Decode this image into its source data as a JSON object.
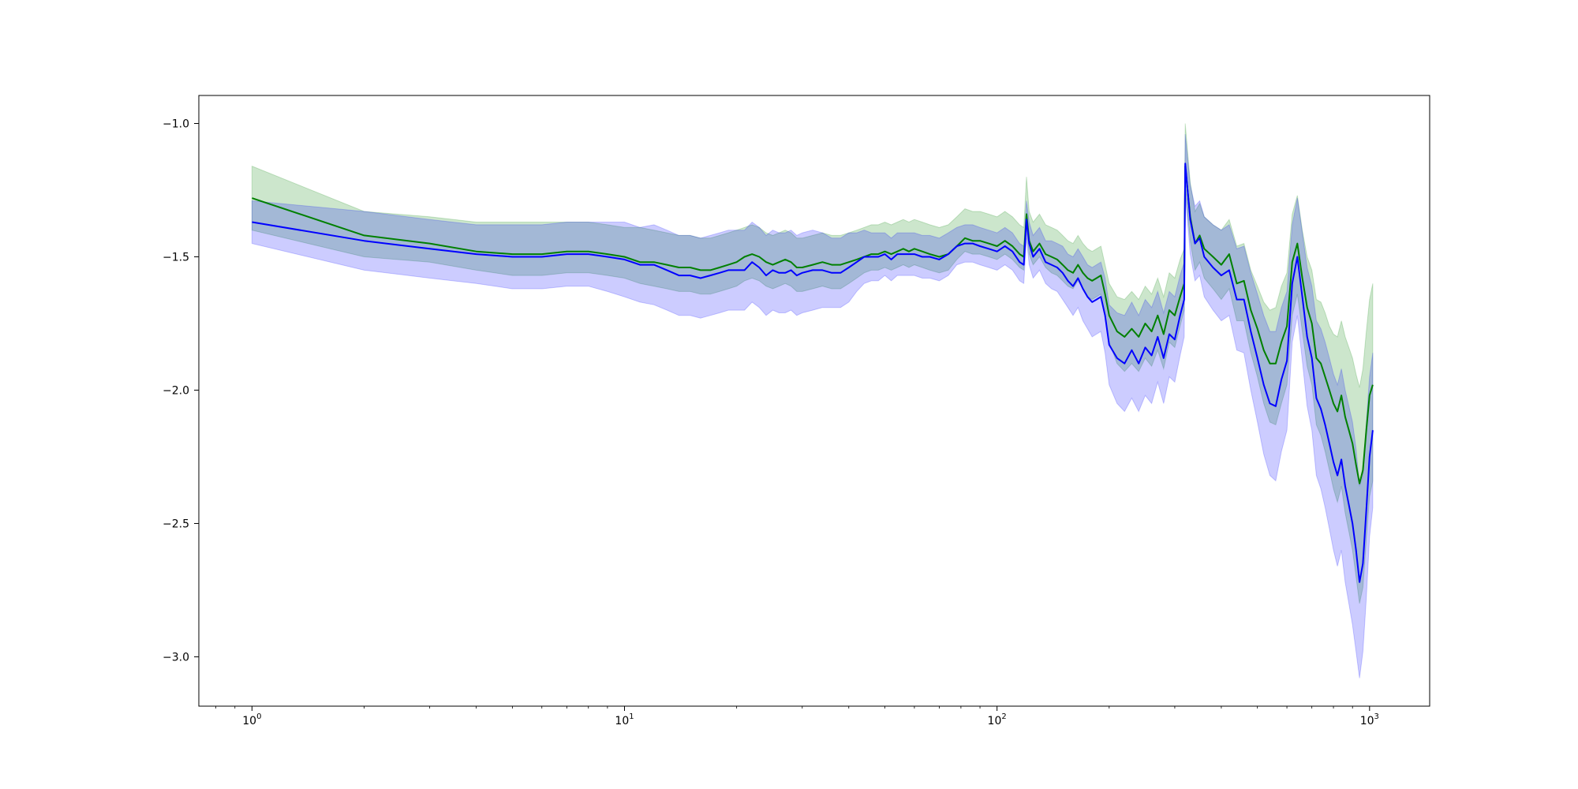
{
  "chart_data": {
    "type": "line",
    "title": "",
    "xlabel": "",
    "ylabel": "",
    "xscale": "log",
    "xlim": [
      0.72,
      1450
    ],
    "ylim": [
      -3.185,
      -0.895
    ],
    "grid": false,
    "legend": "none",
    "x_ticks": [
      {
        "base": "10",
        "exp": "0",
        "value": 1
      },
      {
        "base": "10",
        "exp": "1",
        "value": 10
      },
      {
        "base": "10",
        "exp": "2",
        "value": 100
      },
      {
        "base": "10",
        "exp": "3",
        "value": 1000
      }
    ],
    "y_ticks": [
      {
        "label": "−1.0",
        "value": -1.0
      },
      {
        "label": "−1.5",
        "value": -1.5
      },
      {
        "label": "−2.0",
        "value": -2.0
      },
      {
        "label": "−2.5",
        "value": -2.5
      },
      {
        "label": "−3.0",
        "value": -3.0
      }
    ],
    "series": [
      {
        "color": "#008000",
        "band_color": "#008000",
        "band_opacity": 0.2,
        "x": [
          1,
          2,
          3,
          4,
          5,
          6,
          7,
          8,
          9,
          10,
          11,
          12,
          13,
          14,
          15,
          16,
          17,
          18,
          19,
          20,
          21,
          22,
          23,
          24,
          25,
          26,
          27,
          28,
          29,
          30,
          32,
          34,
          36,
          38,
          40,
          42,
          44,
          46,
          48,
          50,
          52,
          54,
          56,
          58,
          60,
          63,
          66,
          70,
          74,
          78,
          82,
          86,
          90,
          95,
          100,
          105,
          110,
          115,
          118,
          120,
          122,
          125,
          130,
          135,
          140,
          145,
          150,
          155,
          160,
          165,
          170,
          175,
          180,
          185,
          190,
          195,
          200,
          210,
          220,
          230,
          240,
          250,
          260,
          270,
          280,
          290,
          300,
          310,
          318,
          320,
          330,
          340,
          350,
          360,
          380,
          400,
          420,
          440,
          460,
          480,
          500,
          520,
          540,
          560,
          580,
          600,
          620,
          640,
          660,
          680,
          700,
          720,
          740,
          760,
          780,
          800,
          820,
          840,
          860,
          880,
          900,
          920,
          940,
          960,
          980,
          1000,
          1020
        ],
        "y": [
          -1.28,
          -1.42,
          -1.45,
          -1.48,
          -1.49,
          -1.49,
          -1.48,
          -1.48,
          -1.49,
          -1.5,
          -1.52,
          -1.52,
          -1.53,
          -1.54,
          -1.54,
          -1.55,
          -1.55,
          -1.54,
          -1.53,
          -1.52,
          -1.5,
          -1.49,
          -1.5,
          -1.52,
          -1.53,
          -1.52,
          -1.51,
          -1.52,
          -1.54,
          -1.54,
          -1.53,
          -1.52,
          -1.53,
          -1.53,
          -1.52,
          -1.51,
          -1.5,
          -1.49,
          -1.49,
          -1.48,
          -1.49,
          -1.48,
          -1.47,
          -1.48,
          -1.47,
          -1.48,
          -1.49,
          -1.5,
          -1.49,
          -1.46,
          -1.43,
          -1.44,
          -1.44,
          -1.45,
          -1.46,
          -1.44,
          -1.46,
          -1.49,
          -1.5,
          -1.34,
          -1.44,
          -1.48,
          -1.45,
          -1.49,
          -1.5,
          -1.51,
          -1.53,
          -1.55,
          -1.56,
          -1.53,
          -1.56,
          -1.58,
          -1.59,
          -1.58,
          -1.57,
          -1.64,
          -1.72,
          -1.78,
          -1.8,
          -1.77,
          -1.8,
          -1.75,
          -1.78,
          -1.72,
          -1.79,
          -1.7,
          -1.72,
          -1.65,
          -1.6,
          -1.16,
          -1.35,
          -1.45,
          -1.42,
          -1.47,
          -1.5,
          -1.53,
          -1.49,
          -1.6,
          -1.59,
          -1.7,
          -1.77,
          -1.85,
          -1.9,
          -1.9,
          -1.82,
          -1.76,
          -1.52,
          -1.45,
          -1.58,
          -1.69,
          -1.75,
          -1.88,
          -1.9,
          -1.95,
          -2.0,
          -2.05,
          -2.08,
          -2.02,
          -2.1,
          -2.15,
          -2.2,
          -2.28,
          -2.35,
          -2.3,
          -2.15,
          -2.02,
          -1.98
        ],
        "lower": [
          -1.4,
          -1.5,
          -1.52,
          -1.55,
          -1.57,
          -1.57,
          -1.56,
          -1.56,
          -1.57,
          -1.58,
          -1.6,
          -1.61,
          -1.62,
          -1.63,
          -1.63,
          -1.64,
          -1.64,
          -1.63,
          -1.62,
          -1.61,
          -1.59,
          -1.58,
          -1.59,
          -1.61,
          -1.62,
          -1.61,
          -1.6,
          -1.61,
          -1.63,
          -1.63,
          -1.62,
          -1.61,
          -1.62,
          -1.62,
          -1.6,
          -1.58,
          -1.56,
          -1.55,
          -1.55,
          -1.54,
          -1.55,
          -1.54,
          -1.53,
          -1.54,
          -1.53,
          -1.54,
          -1.55,
          -1.56,
          -1.55,
          -1.51,
          -1.48,
          -1.49,
          -1.49,
          -1.5,
          -1.51,
          -1.49,
          -1.51,
          -1.54,
          -1.55,
          -1.4,
          -1.49,
          -1.53,
          -1.5,
          -1.54,
          -1.56,
          -1.57,
          -1.59,
          -1.61,
          -1.62,
          -1.59,
          -1.62,
          -1.65,
          -1.66,
          -1.65,
          -1.64,
          -1.72,
          -1.82,
          -1.9,
          -1.93,
          -1.9,
          -1.93,
          -1.88,
          -1.91,
          -1.85,
          -1.92,
          -1.82,
          -1.84,
          -1.76,
          -1.7,
          -1.24,
          -1.44,
          -1.55,
          -1.52,
          -1.58,
          -1.62,
          -1.66,
          -1.62,
          -1.74,
          -1.74,
          -1.86,
          -1.95,
          -2.05,
          -2.12,
          -2.13,
          -2.05,
          -1.98,
          -1.72,
          -1.64,
          -1.78,
          -1.91,
          -1.98,
          -2.13,
          -2.17,
          -2.23,
          -2.3,
          -2.37,
          -2.42,
          -2.36,
          -2.46,
          -2.53,
          -2.6,
          -2.7,
          -2.8,
          -2.74,
          -2.56,
          -2.4,
          -2.34
        ],
        "upper": [
          -1.16,
          -1.33,
          -1.35,
          -1.37,
          -1.37,
          -1.37,
          -1.37,
          -1.37,
          -1.38,
          -1.39,
          -1.39,
          -1.4,
          -1.41,
          -1.42,
          -1.42,
          -1.43,
          -1.43,
          -1.42,
          -1.41,
          -1.4,
          -1.39,
          -1.38,
          -1.39,
          -1.41,
          -1.42,
          -1.41,
          -1.4,
          -1.41,
          -1.43,
          -1.43,
          -1.42,
          -1.41,
          -1.42,
          -1.42,
          -1.41,
          -1.4,
          -1.39,
          -1.38,
          -1.38,
          -1.37,
          -1.38,
          -1.37,
          -1.36,
          -1.37,
          -1.36,
          -1.37,
          -1.38,
          -1.39,
          -1.38,
          -1.35,
          -1.32,
          -1.33,
          -1.33,
          -1.34,
          -1.35,
          -1.33,
          -1.35,
          -1.38,
          -1.39,
          -1.2,
          -1.33,
          -1.37,
          -1.34,
          -1.38,
          -1.39,
          -1.4,
          -1.42,
          -1.44,
          -1.45,
          -1.42,
          -1.45,
          -1.47,
          -1.48,
          -1.47,
          -1.46,
          -1.53,
          -1.6,
          -1.65,
          -1.66,
          -1.63,
          -1.66,
          -1.61,
          -1.64,
          -1.58,
          -1.65,
          -1.56,
          -1.58,
          -1.51,
          -1.47,
          -1.0,
          -1.22,
          -1.33,
          -1.3,
          -1.35,
          -1.38,
          -1.4,
          -1.36,
          -1.46,
          -1.45,
          -1.55,
          -1.61,
          -1.67,
          -1.7,
          -1.69,
          -1.61,
          -1.56,
          -1.34,
          -1.27,
          -1.4,
          -1.5,
          -1.55,
          -1.66,
          -1.67,
          -1.71,
          -1.76,
          -1.79,
          -1.8,
          -1.74,
          -1.8,
          -1.84,
          -1.88,
          -1.94,
          -1.99,
          -1.92,
          -1.78,
          -1.66,
          -1.6
        ]
      },
      {
        "color": "#0000ff",
        "band_color": "#0000ff",
        "band_opacity": 0.2,
        "x": [
          1,
          2,
          3,
          4,
          5,
          6,
          7,
          8,
          9,
          10,
          11,
          12,
          13,
          14,
          15,
          16,
          17,
          18,
          19,
          20,
          21,
          22,
          23,
          24,
          25,
          26,
          27,
          28,
          29,
          30,
          32,
          34,
          36,
          38,
          40,
          42,
          44,
          46,
          48,
          50,
          52,
          54,
          56,
          58,
          60,
          63,
          66,
          70,
          74,
          78,
          82,
          86,
          90,
          95,
          100,
          105,
          110,
          115,
          118,
          120,
          122,
          125,
          130,
          135,
          140,
          145,
          150,
          155,
          160,
          165,
          170,
          175,
          180,
          185,
          190,
          195,
          200,
          210,
          220,
          230,
          240,
          250,
          260,
          270,
          280,
          290,
          300,
          310,
          318,
          320,
          330,
          340,
          350,
          360,
          380,
          400,
          420,
          440,
          460,
          480,
          500,
          520,
          540,
          560,
          580,
          600,
          620,
          640,
          660,
          680,
          700,
          720,
          740,
          760,
          780,
          800,
          820,
          840,
          860,
          880,
          900,
          920,
          940,
          960,
          980,
          1000,
          1020
        ],
        "y": [
          -1.37,
          -1.44,
          -1.47,
          -1.49,
          -1.5,
          -1.5,
          -1.49,
          -1.49,
          -1.5,
          -1.51,
          -1.53,
          -1.53,
          -1.55,
          -1.57,
          -1.57,
          -1.58,
          -1.57,
          -1.56,
          -1.55,
          -1.55,
          -1.55,
          -1.52,
          -1.54,
          -1.57,
          -1.55,
          -1.56,
          -1.56,
          -1.55,
          -1.57,
          -1.56,
          -1.55,
          -1.55,
          -1.56,
          -1.56,
          -1.54,
          -1.52,
          -1.5,
          -1.5,
          -1.5,
          -1.49,
          -1.51,
          -1.49,
          -1.49,
          -1.49,
          -1.49,
          -1.5,
          -1.5,
          -1.51,
          -1.49,
          -1.46,
          -1.45,
          -1.45,
          -1.46,
          -1.47,
          -1.48,
          -1.46,
          -1.48,
          -1.52,
          -1.53,
          -1.36,
          -1.45,
          -1.5,
          -1.47,
          -1.52,
          -1.53,
          -1.54,
          -1.56,
          -1.59,
          -1.61,
          -1.58,
          -1.62,
          -1.65,
          -1.67,
          -1.66,
          -1.65,
          -1.72,
          -1.83,
          -1.88,
          -1.9,
          -1.85,
          -1.9,
          -1.84,
          -1.87,
          -1.8,
          -1.88,
          -1.79,
          -1.81,
          -1.72,
          -1.66,
          -1.15,
          -1.36,
          -1.45,
          -1.43,
          -1.5,
          -1.54,
          -1.57,
          -1.55,
          -1.66,
          -1.66,
          -1.78,
          -1.88,
          -1.98,
          -2.05,
          -2.06,
          -1.96,
          -1.89,
          -1.6,
          -1.5,
          -1.65,
          -1.8,
          -1.88,
          -2.03,
          -2.07,
          -2.13,
          -2.2,
          -2.27,
          -2.32,
          -2.26,
          -2.36,
          -2.43,
          -2.5,
          -2.6,
          -2.72,
          -2.65,
          -2.45,
          -2.25,
          -2.15
        ],
        "lower": [
          -1.45,
          -1.55,
          -1.58,
          -1.6,
          -1.62,
          -1.62,
          -1.61,
          -1.61,
          -1.63,
          -1.65,
          -1.67,
          -1.68,
          -1.7,
          -1.72,
          -1.72,
          -1.73,
          -1.72,
          -1.71,
          -1.7,
          -1.7,
          -1.7,
          -1.67,
          -1.69,
          -1.72,
          -1.7,
          -1.71,
          -1.71,
          -1.7,
          -1.72,
          -1.71,
          -1.7,
          -1.69,
          -1.69,
          -1.69,
          -1.67,
          -1.63,
          -1.6,
          -1.59,
          -1.59,
          -1.57,
          -1.59,
          -1.57,
          -1.57,
          -1.57,
          -1.57,
          -1.58,
          -1.58,
          -1.59,
          -1.57,
          -1.53,
          -1.52,
          -1.52,
          -1.53,
          -1.54,
          -1.55,
          -1.53,
          -1.55,
          -1.59,
          -1.6,
          -1.43,
          -1.53,
          -1.58,
          -1.55,
          -1.6,
          -1.62,
          -1.63,
          -1.66,
          -1.69,
          -1.72,
          -1.69,
          -1.74,
          -1.77,
          -1.8,
          -1.79,
          -1.78,
          -1.86,
          -1.98,
          -2.05,
          -2.08,
          -2.03,
          -2.08,
          -2.02,
          -2.05,
          -1.97,
          -2.05,
          -1.95,
          -1.97,
          -1.87,
          -1.8,
          -1.26,
          -1.49,
          -1.59,
          -1.57,
          -1.65,
          -1.7,
          -1.74,
          -1.72,
          -1.85,
          -1.86,
          -2.0,
          -2.12,
          -2.24,
          -2.32,
          -2.34,
          -2.23,
          -2.15,
          -1.82,
          -1.72,
          -1.89,
          -2.06,
          -2.15,
          -2.32,
          -2.37,
          -2.44,
          -2.52,
          -2.6,
          -2.66,
          -2.6,
          -2.72,
          -2.8,
          -2.88,
          -2.98,
          -3.08,
          -2.98,
          -2.78,
          -2.55,
          -2.44
        ],
        "upper": [
          -1.29,
          -1.33,
          -1.36,
          -1.38,
          -1.38,
          -1.38,
          -1.37,
          -1.37,
          -1.37,
          -1.37,
          -1.39,
          -1.38,
          -1.4,
          -1.42,
          -1.42,
          -1.43,
          -1.42,
          -1.41,
          -1.4,
          -1.4,
          -1.4,
          -1.37,
          -1.39,
          -1.42,
          -1.4,
          -1.41,
          -1.41,
          -1.4,
          -1.42,
          -1.41,
          -1.4,
          -1.41,
          -1.43,
          -1.43,
          -1.41,
          -1.41,
          -1.4,
          -1.41,
          -1.41,
          -1.41,
          -1.43,
          -1.41,
          -1.41,
          -1.41,
          -1.41,
          -1.42,
          -1.42,
          -1.43,
          -1.41,
          -1.39,
          -1.38,
          -1.38,
          -1.39,
          -1.4,
          -1.41,
          -1.39,
          -1.41,
          -1.45,
          -1.46,
          -1.29,
          -1.37,
          -1.42,
          -1.39,
          -1.44,
          -1.44,
          -1.45,
          -1.46,
          -1.49,
          -1.5,
          -1.47,
          -1.5,
          -1.53,
          -1.54,
          -1.53,
          -1.52,
          -1.58,
          -1.68,
          -1.71,
          -1.72,
          -1.67,
          -1.72,
          -1.66,
          -1.69,
          -1.63,
          -1.71,
          -1.63,
          -1.65,
          -1.57,
          -1.52,
          -1.04,
          -1.23,
          -1.31,
          -1.29,
          -1.35,
          -1.38,
          -1.4,
          -1.38,
          -1.47,
          -1.46,
          -1.56,
          -1.64,
          -1.72,
          -1.78,
          -1.78,
          -1.69,
          -1.63,
          -1.38,
          -1.28,
          -1.41,
          -1.54,
          -1.61,
          -1.74,
          -1.77,
          -1.82,
          -1.88,
          -1.94,
          -1.98,
          -1.92,
          -2.0,
          -2.06,
          -2.12,
          -2.22,
          -2.36,
          -2.32,
          -2.12,
          -1.95,
          -1.86
        ]
      }
    ]
  }
}
